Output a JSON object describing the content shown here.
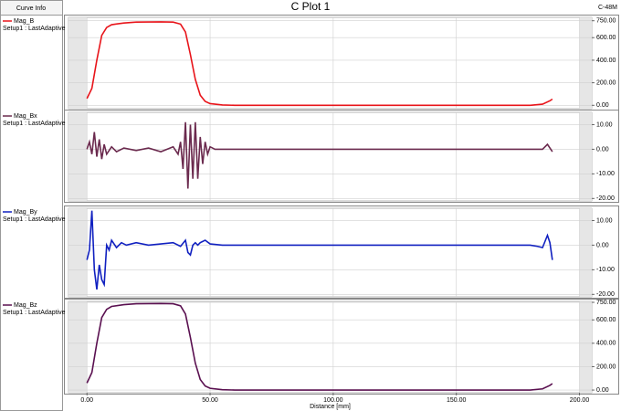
{
  "title": "C Plot 1",
  "corner_label": "C-48M",
  "curve_info_header": "Curve Info",
  "chart_data": [
    {
      "type": "line",
      "setup": "Setup1 : LastAdaptive",
      "x": [
        0,
        2,
        4,
        6,
        8,
        10,
        15,
        20,
        30,
        35,
        38,
        40,
        42,
        44,
        46,
        48,
        50,
        55,
        60,
        100,
        150,
        180,
        185,
        188,
        189
      ],
      "series": [
        {
          "name": "Mag_B",
          "color": "#e8141a",
          "values": [
            60,
            150,
            400,
            620,
            690,
            715,
            730,
            738,
            740,
            738,
            720,
            650,
            450,
            230,
            90,
            35,
            15,
            3,
            0,
            0,
            0,
            0,
            10,
            40,
            55
          ]
        }
      ],
      "ylim": [
        -30,
        780
      ],
      "yticks": [
        {
          "value": 0,
          "label": "0.00"
        },
        {
          "value": 200,
          "label": "200.00"
        },
        {
          "value": 400,
          "label": "400.00"
        },
        {
          "value": 600,
          "label": "600.00"
        },
        {
          "value": 750,
          "label": "750.00"
        }
      ]
    },
    {
      "type": "line",
      "setup": "Setup1 : LastAdaptive",
      "x": [
        0,
        1,
        2,
        3,
        4,
        5,
        6,
        7,
        8,
        10,
        12,
        15,
        20,
        25,
        30,
        35,
        37,
        38,
        39,
        40,
        41,
        42,
        43,
        44,
        45,
        46,
        47,
        48,
        49,
        50,
        52,
        60,
        100,
        150,
        185,
        187,
        189
      ],
      "series": [
        {
          "name": "Mag_Bx",
          "color": "#6b2a4e",
          "values": [
            0,
            3,
            -2,
            7,
            -3,
            4,
            -4,
            2,
            -2,
            1,
            -1,
            0.5,
            -0.5,
            0.5,
            -1,
            1,
            -2,
            3,
            -8,
            11,
            -16,
            10,
            -12,
            11,
            -12,
            5,
            -6,
            3,
            -2,
            1,
            0,
            0,
            0,
            0,
            0,
            2,
            -1
          ]
        }
      ],
      "ylim": [
        -21,
        15
      ],
      "yticks": [
        {
          "value": -20,
          "label": "-20.00"
        },
        {
          "value": -10,
          "label": "-10.00"
        },
        {
          "value": 0,
          "label": "0.00"
        },
        {
          "value": 10,
          "label": "10.00"
        }
      ]
    },
    {
      "type": "line",
      "setup": "Setup1 : LastAdaptive",
      "x": [
        0,
        1,
        2,
        3,
        4,
        5,
        6,
        7,
        8,
        9,
        10,
        12,
        14,
        16,
        20,
        25,
        30,
        35,
        38,
        40,
        41,
        42,
        43,
        44,
        45,
        46,
        48,
        50,
        55,
        100,
        150,
        180,
        183,
        185,
        187,
        188,
        189
      ],
      "series": [
        {
          "name": "Mag_By",
          "color": "#1020c0",
          "values": [
            -6,
            -2,
            14,
            -10,
            -18,
            -8,
            -14,
            -16,
            0,
            -2,
            2,
            -1,
            1,
            0,
            1,
            0,
            0.5,
            1,
            -0.5,
            2,
            -3,
            -4,
            0,
            1,
            0,
            1,
            2,
            0.5,
            0,
            0,
            0,
            0,
            -0.5,
            -1,
            4,
            1,
            -6
          ]
        }
      ],
      "ylim": [
        -21,
        15
      ],
      "yticks": [
        {
          "value": -20,
          "label": "-20.00"
        },
        {
          "value": -10,
          "label": "-10.00"
        },
        {
          "value": 0,
          "label": "0.00"
        },
        {
          "value": 10,
          "label": "10.00"
        }
      ]
    },
    {
      "type": "line",
      "setup": "Setup1 : LastAdaptive",
      "x": [
        0,
        2,
        4,
        6,
        8,
        10,
        15,
        20,
        30,
        35,
        38,
        40,
        42,
        44,
        46,
        48,
        50,
        55,
        60,
        100,
        150,
        180,
        185,
        188,
        189
      ],
      "series": [
        {
          "name": "Mag_Bz",
          "color": "#5a1050",
          "values": [
            60,
            150,
            400,
            620,
            690,
            715,
            730,
            738,
            740,
            738,
            720,
            650,
            450,
            230,
            90,
            35,
            15,
            3,
            0,
            0,
            0,
            0,
            10,
            40,
            55
          ]
        }
      ],
      "ylim": [
        -23,
        758
      ],
      "yticks": [
        {
          "value": 0,
          "label": "0.00"
        },
        {
          "value": 200,
          "label": "200.00"
        },
        {
          "value": 400,
          "label": "400.00"
        },
        {
          "value": 600,
          "label": "600.00"
        },
        {
          "value": 750,
          "label": "750.00"
        }
      ],
      "xlabel": "Distance [mm]",
      "xlim": [
        -7.5,
        205
      ],
      "xticks": [
        {
          "value": 0,
          "label": "0.00"
        },
        {
          "value": 50,
          "label": "50.00"
        },
        {
          "value": 100,
          "label": "100.00"
        },
        {
          "value": 150,
          "label": "150.00"
        },
        {
          "value": 200,
          "label": "200.00"
        }
      ]
    }
  ]
}
